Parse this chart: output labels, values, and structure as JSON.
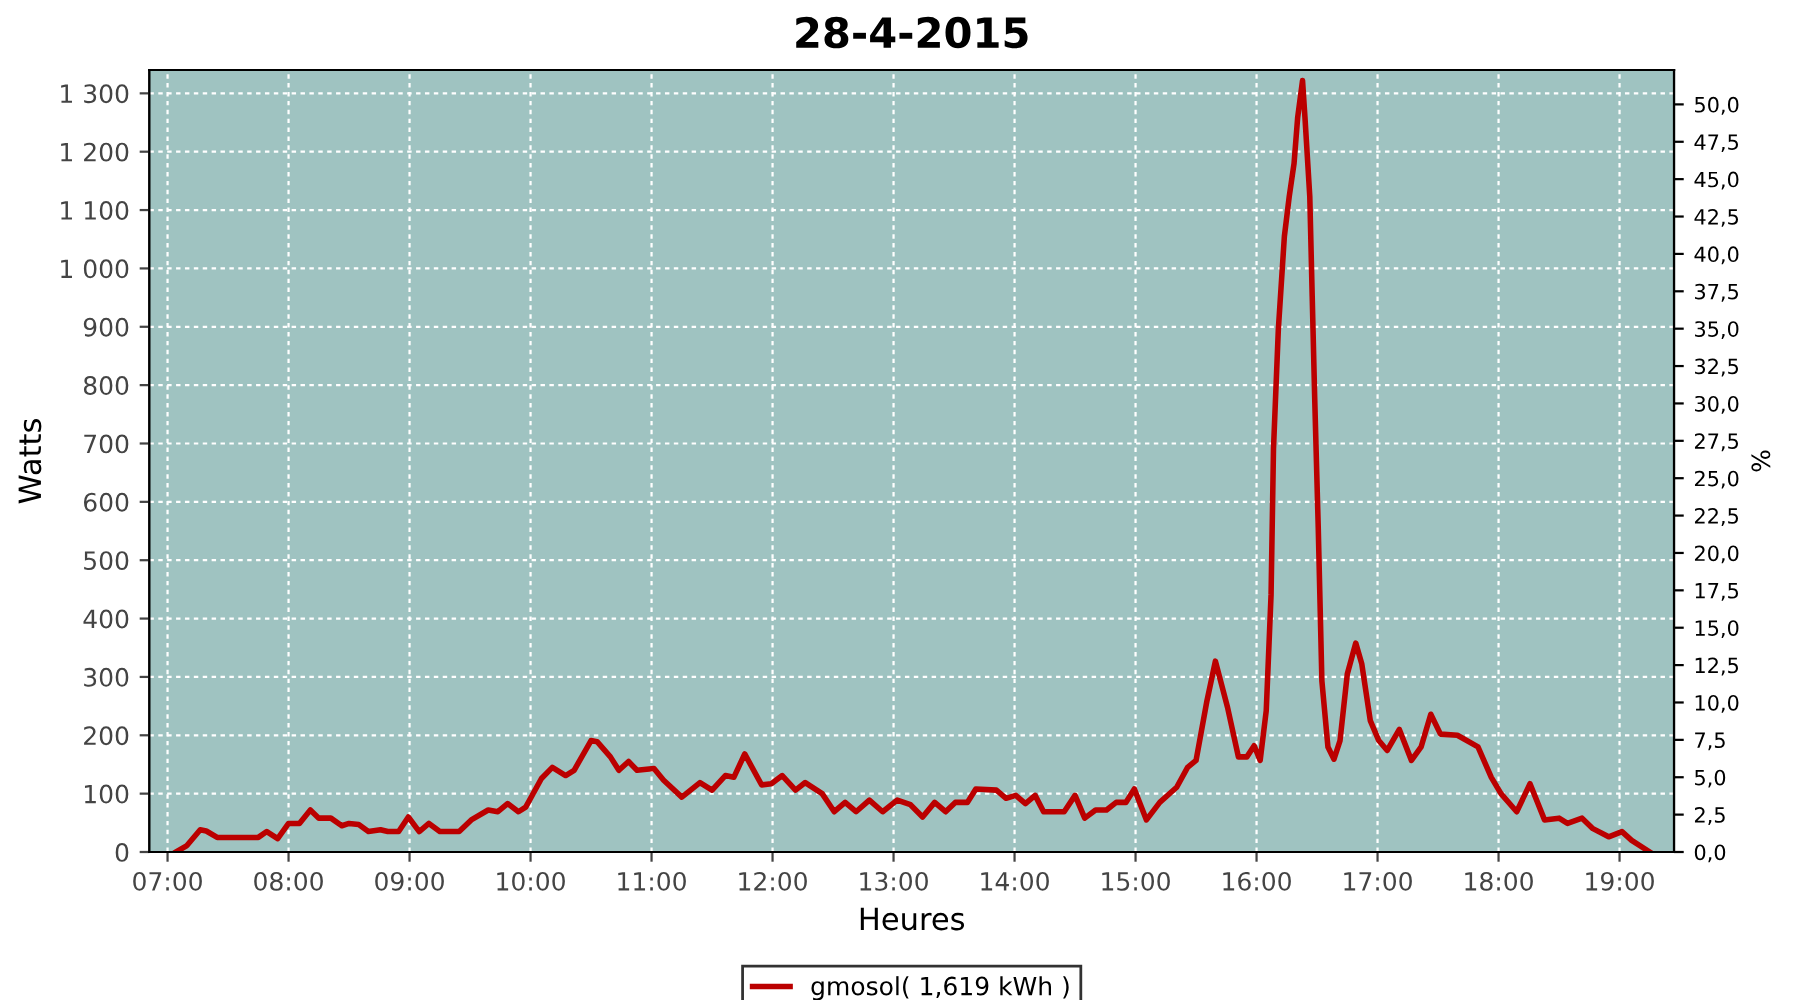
{
  "chart_data": {
    "type": "line",
    "title": "28-4-2015",
    "xlabel": "Heures",
    "ylabel": "Watts",
    "y2label": "%",
    "xlim": [
      6.85,
      19.45
    ],
    "xticks": [
      {
        "value": 7,
        "label": "07:00"
      },
      {
        "value": 8,
        "label": "08:00"
      },
      {
        "value": 9,
        "label": "09:00"
      },
      {
        "value": 10,
        "label": "10:00"
      },
      {
        "value": 11,
        "label": "11:00"
      },
      {
        "value": 12,
        "label": "12:00"
      },
      {
        "value": 13,
        "label": "13:00"
      },
      {
        "value": 14,
        "label": "14:00"
      },
      {
        "value": 15,
        "label": "15:00"
      },
      {
        "value": 16,
        "label": "16:00"
      },
      {
        "value": 17,
        "label": "17:00"
      },
      {
        "value": 18,
        "label": "18:00"
      },
      {
        "value": 19,
        "label": "19:00"
      }
    ],
    "ylim": [
      0,
      1340
    ],
    "yticks": [
      0,
      100,
      200,
      300,
      400,
      500,
      600,
      700,
      800,
      900,
      {
        "value": 1000,
        "label": "1 000"
      },
      {
        "value": 1100,
        "label": "1 100"
      },
      {
        "value": 1200,
        "label": "1 200"
      },
      {
        "value": 1300,
        "label": "1 300"
      }
    ],
    "y2lim": [
      0,
      52.3
    ],
    "y2ticks": [
      {
        "value": 0,
        "label": "0,0"
      },
      {
        "value": 2.5,
        "label": "2,5"
      },
      {
        "value": 5,
        "label": "5,0"
      },
      {
        "value": 7.5,
        "label": "7,5"
      },
      {
        "value": 10,
        "label": "10,0"
      },
      {
        "value": 12.5,
        "label": "12,5"
      },
      {
        "value": 15,
        "label": "15,0"
      },
      {
        "value": 17.5,
        "label": "17,5"
      },
      {
        "value": 20,
        "label": "20,0"
      },
      {
        "value": 22.5,
        "label": "22,5"
      },
      {
        "value": 25,
        "label": "25,0"
      },
      {
        "value": 27.5,
        "label": "27,5"
      },
      {
        "value": 30,
        "label": "30,0"
      },
      {
        "value": 32.5,
        "label": "32,5"
      },
      {
        "value": 35,
        "label": "35,0"
      },
      {
        "value": 37.5,
        "label": "37,5"
      },
      {
        "value": 40,
        "label": "40,0"
      },
      {
        "value": 42.5,
        "label": "42,5"
      },
      {
        "value": 45,
        "label": "45,0"
      },
      {
        "value": 47.5,
        "label": "47,5"
      },
      {
        "value": 50,
        "label": "50,0"
      }
    ],
    "grid": true,
    "legend": "bottom",
    "line_style": "solid",
    "marker": "none",
    "series": [
      {
        "name": "gmosol( 1,619 kWh )",
        "color": "#bb0000",
        "x": [
          7.07,
          7.16,
          7.27,
          7.32,
          7.41,
          7.75,
          7.82,
          7.91,
          8.0,
          8.09,
          8.18,
          8.25,
          8.35,
          8.44,
          8.5,
          8.58,
          8.66,
          8.76,
          8.82,
          8.91,
          8.99,
          9.08,
          9.16,
          9.25,
          9.41,
          9.51,
          9.65,
          9.73,
          9.81,
          9.9,
          9.96,
          10.09,
          10.18,
          10.29,
          10.36,
          10.5,
          10.55,
          10.66,
          10.73,
          10.81,
          10.88,
          11.02,
          11.1,
          11.25,
          11.4,
          11.5,
          11.61,
          11.68,
          11.77,
          11.91,
          11.99,
          12.08,
          12.19,
          12.27,
          12.41,
          12.51,
          12.6,
          12.69,
          12.8,
          12.91,
          13.03,
          13.14,
          13.24,
          13.34,
          13.43,
          13.51,
          13.61,
          13.68,
          13.85,
          13.93,
          14.01,
          14.09,
          14.17,
          14.24,
          14.41,
          14.5,
          14.58,
          14.67,
          14.76,
          14.84,
          14.92,
          14.99,
          15.09,
          15.2,
          15.34,
          15.43,
          15.5,
          15.59,
          15.66,
          15.76,
          15.85,
          15.92,
          15.98,
          16.03,
          16.08,
          16.12,
          16.14,
          16.18,
          16.23,
          16.27,
          16.31,
          16.34,
          16.38,
          16.4,
          16.44,
          16.46,
          16.48,
          16.51,
          16.54,
          16.59,
          16.64,
          16.69,
          16.75,
          16.82,
          16.87,
          16.94,
          17.01,
          17.08,
          17.18,
          17.28,
          17.36,
          17.44,
          17.52,
          17.66,
          17.83,
          17.94,
          18.02,
          18.15,
          18.26,
          18.38,
          18.5,
          18.57,
          18.69,
          18.78,
          18.91,
          19.02,
          19.1,
          19.25
        ],
        "values": [
          0,
          11,
          38,
          36,
          25,
          25,
          35,
          23,
          49,
          49,
          72,
          58,
          58,
          45,
          49,
          47,
          35,
          38,
          35,
          35,
          60,
          35,
          49,
          35,
          35,
          55,
          72,
          69,
          83,
          69,
          77,
          126,
          145,
          131,
          140,
          191,
          189,
          163,
          140,
          155,
          140,
          143,
          123,
          94,
          119,
          106,
          131,
          128,
          168,
          115,
          117,
          131,
          106,
          119,
          100,
          69,
          85,
          69,
          89,
          69,
          89,
          81,
          60,
          85,
          69,
          85,
          85,
          108,
          106,
          92,
          97,
          83,
          97,
          69,
          69,
          97,
          58,
          72,
          72,
          85,
          85,
          108,
          55,
          85,
          111,
          145,
          157,
          259,
          327,
          248,
          163,
          163,
          182,
          157,
          242,
          441,
          691,
          895,
          1055,
          1123,
          1180,
          1259,
          1322,
          1259,
          1123,
          952,
          782,
          555,
          293,
          180,
          159,
          191,
          305,
          358,
          322,
          225,
          191,
          174,
          210,
          157,
          180,
          236,
          202,
          200,
          180,
          128,
          100,
          69,
          117,
          55,
          58,
          49,
          58,
          40,
          26,
          35,
          20,
          0
        ]
      }
    ]
  }
}
